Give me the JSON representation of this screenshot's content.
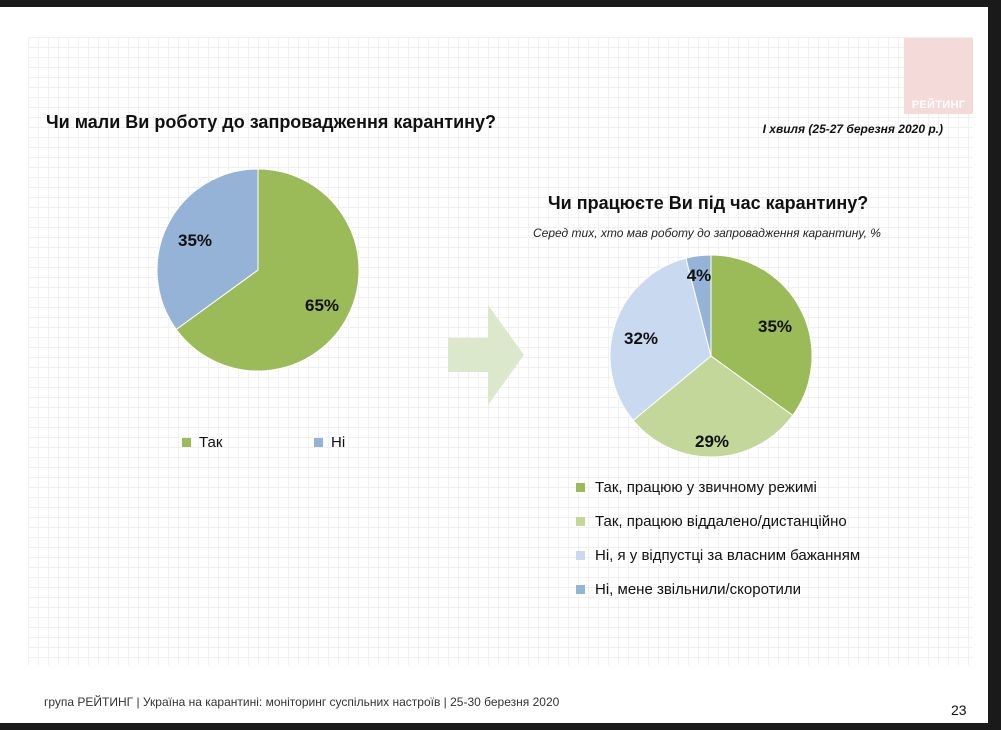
{
  "logo": {
    "text": "РЕЙТИНГ"
  },
  "wave_label": "I хвиля (25-27 березня 2020 р.)",
  "footer": {
    "text": "група РЕЙТИНГ  |  Україна на карантині: моніторинг суспільних настроїв  |  25-30 березня 2020",
    "page_number": "23"
  },
  "colors": {
    "green_dark": "#9bbb59",
    "green_light": "#c3d79b",
    "blue_light": "#c9d9f0",
    "blue": "#95b3d7",
    "arrow": "#dbe8cc"
  },
  "chart_data": [
    {
      "type": "pie",
      "title": "Чи мали Ви роботу до запровадження карантину?",
      "slices": [
        {
          "label": "Так",
          "value": 65,
          "display": "65%",
          "color": "#9bbb59"
        },
        {
          "label": "Ні",
          "value": 35,
          "display": "35%",
          "color": "#95b3d7"
        }
      ],
      "legend_position": "bottom"
    },
    {
      "type": "pie",
      "title": "Чи працюєте Ви під час карантину?",
      "subtitle": "Серед тих, хто мав роботу до запровадження карантину, %",
      "slices": [
        {
          "label": "Так, працюю у звичному режимі",
          "value": 35,
          "display": "35%",
          "color": "#9bbb59"
        },
        {
          "label": "Так, працюю віддалено/дистанційно",
          "value": 29,
          "display": "29%",
          "color": "#c3d79b"
        },
        {
          "label": "Ні, я у відпустці за власним бажанням",
          "value": 32,
          "display": "32%",
          "color": "#c9d9f0"
        },
        {
          "label": "Ні, мене звільнили/скоротили",
          "value": 4,
          "display": "4%",
          "color": "#95b3d7"
        }
      ],
      "legend_position": "bottom"
    }
  ]
}
